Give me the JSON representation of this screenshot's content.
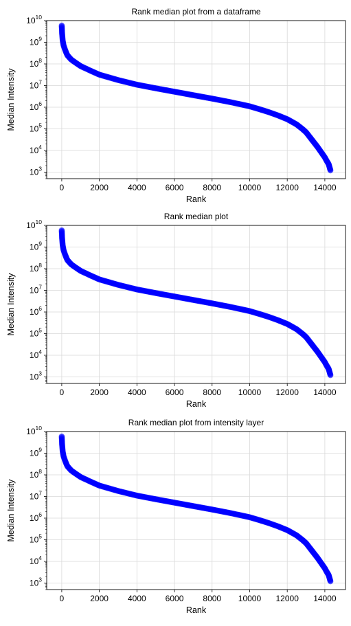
{
  "chart_data": [
    {
      "type": "scatter",
      "title": "Rank median plot from a dataframe",
      "xlabel": "Rank",
      "ylabel": "Median Intensity",
      "xlim": [
        -800,
        15100
      ],
      "ylim": [
        500,
        10000000000
      ],
      "yscale": "log",
      "grid": true,
      "x_ticks": [
        0,
        2000,
        4000,
        6000,
        8000,
        10000,
        12000,
        14000
      ],
      "x_tick_labels": [
        "0",
        "2000",
        "4000",
        "6000",
        "8000",
        "10000",
        "12000",
        "14000"
      ],
      "y_ticks": [
        1000,
        10000,
        100000,
        1000000,
        10000000,
        100000000,
        1000000000,
        10000000000
      ],
      "y_tick_labels": [
        {
          "base": "10",
          "exp": "3"
        },
        {
          "base": "10",
          "exp": "4"
        },
        {
          "base": "10",
          "exp": "5"
        },
        {
          "base": "10",
          "exp": "6"
        },
        {
          "base": "10",
          "exp": "7"
        },
        {
          "base": "10",
          "exp": "8"
        },
        {
          "base": "10",
          "exp": "9"
        },
        {
          "base": "10",
          "exp": "10"
        }
      ],
      "marker_color": "#0000ff",
      "series": [
        {
          "x": [
            0,
            20,
            50,
            100,
            200,
            300,
            500,
            700,
            1000,
            1500,
            2000,
            2500,
            3000,
            4000,
            5000,
            6000,
            7000,
            8000,
            9000,
            10000,
            10500,
            11000,
            11500,
            12000,
            12500,
            12800,
            13000,
            13200,
            13400,
            13600,
            13800,
            14000,
            14100,
            14200,
            14250,
            14300
          ],
          "y": [
            6000000000,
            2500000000,
            1200000000,
            700000000,
            400000000,
            250000000,
            160000000,
            120000000,
            80000000,
            50000000,
            32000000,
            24000000,
            18000000,
            11000000,
            7500000,
            5200000,
            3600000,
            2500000,
            1700000,
            1100000,
            820000,
            600000,
            420000,
            280000,
            160000,
            100000,
            70000,
            42000,
            25000,
            15000,
            8500,
            4800,
            3300,
            2400,
            1700,
            1200
          ]
        }
      ]
    },
    {
      "type": "scatter",
      "title": "Rank median plot",
      "xlabel": "Rank",
      "ylabel": "Median Intensity",
      "xlim": [
        -800,
        15100
      ],
      "ylim": [
        500,
        10000000000
      ],
      "yscale": "log",
      "grid": true,
      "x_ticks": [
        0,
        2000,
        4000,
        6000,
        8000,
        10000,
        12000,
        14000
      ],
      "x_tick_labels": [
        "0",
        "2000",
        "4000",
        "6000",
        "8000",
        "10000",
        "12000",
        "14000"
      ],
      "y_ticks": [
        1000,
        10000,
        100000,
        1000000,
        10000000,
        100000000,
        1000000000,
        10000000000
      ],
      "y_tick_labels": [
        {
          "base": "10",
          "exp": "3"
        },
        {
          "base": "10",
          "exp": "4"
        },
        {
          "base": "10",
          "exp": "5"
        },
        {
          "base": "10",
          "exp": "6"
        },
        {
          "base": "10",
          "exp": "7"
        },
        {
          "base": "10",
          "exp": "8"
        },
        {
          "base": "10",
          "exp": "9"
        },
        {
          "base": "10",
          "exp": "10"
        }
      ],
      "marker_color": "#0000ff",
      "series": [
        {
          "x": [
            0,
            20,
            50,
            100,
            200,
            300,
            500,
            700,
            1000,
            1500,
            2000,
            2500,
            3000,
            4000,
            5000,
            6000,
            7000,
            8000,
            9000,
            10000,
            10500,
            11000,
            11500,
            12000,
            12500,
            12800,
            13000,
            13200,
            13400,
            13600,
            13800,
            14000,
            14100,
            14200,
            14250,
            14300
          ],
          "y": [
            6000000000,
            2500000000,
            1200000000,
            700000000,
            400000000,
            250000000,
            160000000,
            120000000,
            80000000,
            50000000,
            32000000,
            24000000,
            18000000,
            11000000,
            7500000,
            5200000,
            3600000,
            2500000,
            1700000,
            1100000,
            820000,
            600000,
            420000,
            280000,
            160000,
            100000,
            70000,
            42000,
            25000,
            15000,
            8500,
            4800,
            3300,
            2400,
            1700,
            1200
          ]
        }
      ]
    },
    {
      "type": "scatter",
      "title": "Rank median plot from intensity layer",
      "xlabel": "Rank",
      "ylabel": "Median Intensity",
      "xlim": [
        -800,
        15100
      ],
      "ylim": [
        500,
        10000000000
      ],
      "yscale": "log",
      "grid": true,
      "x_ticks": [
        0,
        2000,
        4000,
        6000,
        8000,
        10000,
        12000,
        14000
      ],
      "x_tick_labels": [
        "0",
        "2000",
        "4000",
        "6000",
        "8000",
        "10000",
        "12000",
        "14000"
      ],
      "y_ticks": [
        1000,
        10000,
        100000,
        1000000,
        10000000,
        100000000,
        1000000000,
        10000000000
      ],
      "y_tick_labels": [
        {
          "base": "10",
          "exp": "3"
        },
        {
          "base": "10",
          "exp": "4"
        },
        {
          "base": "10",
          "exp": "5"
        },
        {
          "base": "10",
          "exp": "6"
        },
        {
          "base": "10",
          "exp": "7"
        },
        {
          "base": "10",
          "exp": "8"
        },
        {
          "base": "10",
          "exp": "9"
        },
        {
          "base": "10",
          "exp": "10"
        }
      ],
      "marker_color": "#0000ff",
      "series": [
        {
          "x": [
            0,
            20,
            50,
            100,
            200,
            300,
            500,
            700,
            1000,
            1500,
            2000,
            2500,
            3000,
            4000,
            5000,
            6000,
            7000,
            8000,
            9000,
            10000,
            10500,
            11000,
            11500,
            12000,
            12500,
            12800,
            13000,
            13200,
            13400,
            13600,
            13800,
            14000,
            14100,
            14200,
            14250,
            14300
          ],
          "y": [
            6000000000,
            2500000000,
            1200000000,
            700000000,
            400000000,
            250000000,
            160000000,
            120000000,
            80000000,
            50000000,
            32000000,
            24000000,
            18000000,
            11000000,
            7500000,
            5200000,
            3600000,
            2500000,
            1700000,
            1100000,
            820000,
            600000,
            420000,
            280000,
            160000,
            100000,
            70000,
            42000,
            25000,
            15000,
            8500,
            4800,
            3300,
            2400,
            1700,
            1200
          ]
        }
      ]
    }
  ]
}
